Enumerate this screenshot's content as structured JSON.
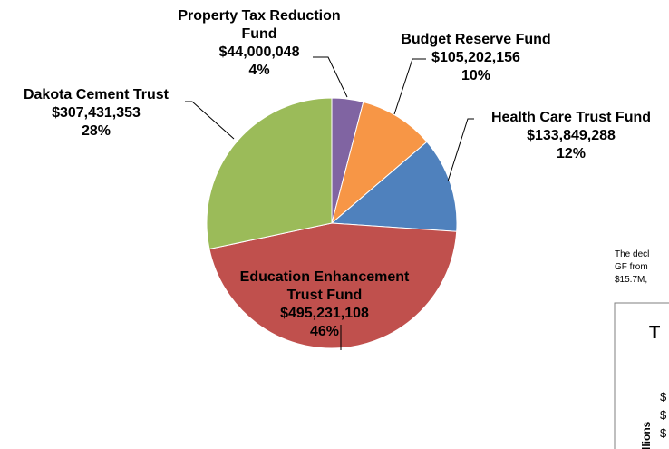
{
  "chart_data": {
    "type": "pie",
    "title": "",
    "series": [
      {
        "name": "",
        "slices": [
          {
            "label_lines": [
              "Property Tax Reduction",
              "Fund"
            ],
            "amount": "$44,000,048",
            "percent": "4%",
            "value": 44000048,
            "color": "#8064A2"
          },
          {
            "label_lines": [
              "Budget Reserve Fund"
            ],
            "amount": "$105,202,156",
            "percent": "10%",
            "value": 105202156,
            "color": "#F79646"
          },
          {
            "label_lines": [
              "Health Care Trust Fund"
            ],
            "amount": "$133,849,288",
            "percent": "12%",
            "value": 133849288,
            "color": "#4F81BD"
          },
          {
            "label_lines": [
              "Education Enhancement",
              "Trust Fund"
            ],
            "amount": "$495,231,108",
            "percent": "46%",
            "value": 495231108,
            "color": "#C0504D"
          },
          {
            "label_lines": [
              "Dakota Cement Trust"
            ],
            "amount": "$307,431,353",
            "percent": "28%",
            "value": 307431353,
            "color": "#9BBB59"
          }
        ]
      }
    ]
  },
  "side_note": {
    "line1": "The decl",
    "line2": "GF from",
    "line3": "$15.7M,"
  },
  "inset_chart": {
    "title_fragment": "T",
    "axis_label_fragment": "llions",
    "tick_fragments": [
      "$",
      "$",
      "$"
    ]
  }
}
